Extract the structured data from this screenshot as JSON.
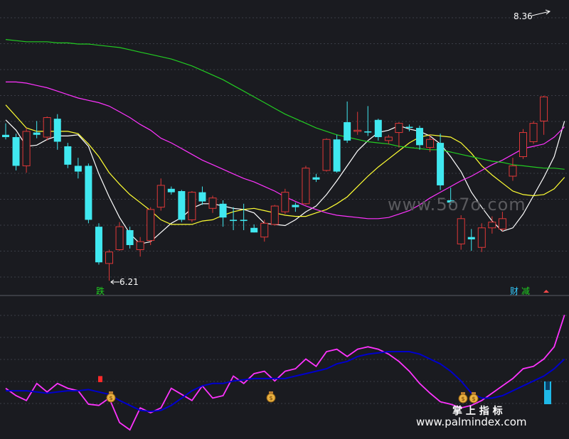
{
  "chart_data": [
    {
      "type": "candlestick",
      "price_high_label": "8.36",
      "price_low_label": "6.21",
      "ylim": [
        6.1,
        8.45
      ],
      "candles": [
        {
          "o": 7.4,
          "h": 7.5,
          "l": 7.36,
          "c": 7.38,
          "up": false
        },
        {
          "o": 7.38,
          "h": 7.41,
          "l": 7.09,
          "c": 7.13,
          "up": false
        },
        {
          "o": 7.43,
          "h": 7.46,
          "l": 7.07,
          "c": 7.13,
          "up": true
        },
        {
          "o": 7.42,
          "h": 7.52,
          "l": 7.37,
          "c": 7.4,
          "up": false
        },
        {
          "o": 7.38,
          "h": 7.56,
          "l": 7.35,
          "c": 7.55,
          "up": true
        },
        {
          "o": 7.54,
          "h": 7.58,
          "l": 7.27,
          "c": 7.34,
          "up": false
        },
        {
          "o": 7.3,
          "h": 7.33,
          "l": 7.11,
          "c": 7.14,
          "up": false
        },
        {
          "o": 7.13,
          "h": 7.2,
          "l": 7.02,
          "c": 7.08,
          "up": false
        },
        {
          "o": 7.13,
          "h": 7.15,
          "l": 6.63,
          "c": 6.66,
          "up": false
        },
        {
          "o": 6.6,
          "h": 6.63,
          "l": 6.27,
          "c": 6.29,
          "up": false
        },
        {
          "o": 6.28,
          "h": 6.4,
          "l": 6.13,
          "c": 6.38,
          "up": true
        },
        {
          "o": 6.4,
          "h": 6.64,
          "l": 6.39,
          "c": 6.6,
          "up": true
        },
        {
          "o": 6.57,
          "h": 6.6,
          "l": 6.41,
          "c": 6.44,
          "up": false
        },
        {
          "o": 6.4,
          "h": 6.51,
          "l": 6.34,
          "c": 6.47,
          "up": true
        },
        {
          "o": 6.48,
          "h": 6.77,
          "l": 6.44,
          "c": 6.75,
          "up": true
        },
        {
          "o": 6.77,
          "h": 7.02,
          "l": 6.74,
          "c": 6.96,
          "up": true
        },
        {
          "o": 6.93,
          "h": 6.95,
          "l": 6.88,
          "c": 6.9,
          "up": false
        },
        {
          "o": 6.91,
          "h": 6.92,
          "l": 6.64,
          "c": 6.66,
          "up": false
        },
        {
          "o": 6.66,
          "h": 6.91,
          "l": 6.64,
          "c": 6.9,
          "up": true
        },
        {
          "o": 6.9,
          "h": 6.95,
          "l": 6.79,
          "c": 6.82,
          "up": false
        },
        {
          "o": 6.76,
          "h": 6.87,
          "l": 6.72,
          "c": 6.85,
          "up": true
        },
        {
          "o": 6.8,
          "h": 6.83,
          "l": 6.6,
          "c": 6.68,
          "up": false
        },
        {
          "o": 6.65,
          "h": 6.77,
          "l": 6.57,
          "c": 6.66,
          "up": false
        },
        {
          "o": 6.65,
          "h": 6.8,
          "l": 6.57,
          "c": 6.66,
          "up": false
        },
        {
          "o": 6.59,
          "h": 6.62,
          "l": 6.55,
          "c": 6.55,
          "up": false
        },
        {
          "o": 6.51,
          "h": 6.66,
          "l": 6.47,
          "c": 6.63,
          "up": true
        },
        {
          "o": 6.62,
          "h": 6.79,
          "l": 6.61,
          "c": 6.78,
          "up": true
        },
        {
          "o": 6.73,
          "h": 6.93,
          "l": 6.71,
          "c": 6.9,
          "up": true
        },
        {
          "o": 6.79,
          "h": 6.81,
          "l": 6.73,
          "c": 6.77,
          "up": false
        },
        {
          "o": 6.8,
          "h": 7.13,
          "l": 6.79,
          "c": 7.11,
          "up": true
        },
        {
          "o": 7.03,
          "h": 7.06,
          "l": 6.99,
          "c": 7.01,
          "up": false
        },
        {
          "o": 7.09,
          "h": 7.37,
          "l": 7.08,
          "c": 7.36,
          "up": true
        },
        {
          "o": 7.08,
          "h": 7.4,
          "l": 7.07,
          "c": 7.36,
          "up": false
        },
        {
          "o": 7.35,
          "h": 7.69,
          "l": 7.33,
          "c": 7.51,
          "up": false
        },
        {
          "o": 7.43,
          "h": 7.6,
          "l": 7.4,
          "c": 7.44,
          "up": true
        },
        {
          "o": 7.43,
          "h": 7.65,
          "l": 7.39,
          "c": 7.42,
          "up": false
        },
        {
          "o": 7.53,
          "h": 7.54,
          "l": 7.35,
          "c": 7.38,
          "up": false
        },
        {
          "o": 7.35,
          "h": 7.4,
          "l": 7.32,
          "c": 7.38,
          "up": true
        },
        {
          "o": 7.42,
          "h": 7.51,
          "l": 7.29,
          "c": 7.5,
          "up": true
        },
        {
          "o": 7.46,
          "h": 7.49,
          "l": 7.43,
          "c": 7.47,
          "up": false
        },
        {
          "o": 7.46,
          "h": 7.48,
          "l": 7.27,
          "c": 7.31,
          "up": false
        },
        {
          "o": 7.36,
          "h": 7.4,
          "l": 7.25,
          "c": 7.29,
          "up": true
        },
        {
          "o": 7.33,
          "h": 7.41,
          "l": 6.92,
          "c": 6.96,
          "up": false
        },
        {
          "o": 6.83,
          "h": 6.94,
          "l": 6.79,
          "c": 6.81,
          "up": false
        },
        {
          "o": 6.67,
          "h": 6.7,
          "l": 6.4,
          "c": 6.45,
          "up": true
        },
        {
          "o": 6.51,
          "h": 6.58,
          "l": 6.39,
          "c": 6.49,
          "up": false
        },
        {
          "o": 6.42,
          "h": 6.63,
          "l": 6.38,
          "c": 6.59,
          "up": true
        },
        {
          "o": 6.59,
          "h": 6.69,
          "l": 6.54,
          "c": 6.64,
          "up": true
        },
        {
          "o": 6.58,
          "h": 6.73,
          "l": 6.56,
          "c": 6.67,
          "up": true
        },
        {
          "o": 7.04,
          "h": 7.2,
          "l": 7.0,
          "c": 7.13,
          "up": true
        },
        {
          "o": 7.21,
          "h": 7.45,
          "l": 7.19,
          "c": 7.42,
          "up": true
        },
        {
          "o": 7.34,
          "h": 7.52,
          "l": 7.32,
          "c": 7.5,
          "up": true
        },
        {
          "o": 7.52,
          "h": 7.74,
          "l": 7.4,
          "c": 7.73,
          "up": true
        }
      ],
      "ma_lines": [
        {
          "color": "#ffffff",
          "values": [
            7.53,
            7.44,
            7.3,
            7.31,
            7.36,
            7.39,
            7.39,
            7.4,
            7.3,
            7.06,
            6.86,
            6.68,
            6.54,
            6.45,
            6.47,
            6.55,
            6.63,
            6.68,
            6.76,
            6.8,
            6.8,
            6.78,
            6.76,
            6.75,
            6.72,
            6.63,
            6.62,
            6.61,
            6.66,
            6.73,
            6.78,
            6.88,
            7.0,
            7.13,
            7.26,
            7.35,
            7.42,
            7.44,
            7.48,
            7.45,
            7.43,
            7.39,
            7.32,
            7.21,
            7.08,
            6.9,
            6.77,
            6.65,
            6.56,
            6.59,
            6.71,
            6.87,
            7.03,
            7.21,
            7.52
          ]
        },
        {
          "color": "#ffff33",
          "values": [
            7.66,
            7.56,
            7.46,
            7.43,
            7.43,
            7.43,
            7.43,
            7.41,
            7.32,
            7.21,
            7.07,
            6.97,
            6.88,
            6.81,
            6.74,
            6.66,
            6.62,
            6.62,
            6.62,
            6.65,
            6.66,
            6.7,
            6.73,
            6.75,
            6.76,
            6.74,
            6.72,
            6.7,
            6.69,
            6.69,
            6.72,
            6.75,
            6.8,
            6.86,
            6.95,
            7.04,
            7.12,
            7.19,
            7.26,
            7.33,
            7.38,
            7.4,
            7.39,
            7.38,
            7.33,
            7.24,
            7.13,
            7.05,
            6.98,
            6.91,
            6.88,
            6.87,
            6.88,
            6.93,
            7.03
          ]
        },
        {
          "color": "#ff33ff",
          "values": [
            7.86,
            7.86,
            7.85,
            7.83,
            7.81,
            7.78,
            7.75,
            7.72,
            7.7,
            7.68,
            7.65,
            7.6,
            7.55,
            7.49,
            7.44,
            7.37,
            7.33,
            7.28,
            7.23,
            7.18,
            7.14,
            7.1,
            7.06,
            7.02,
            6.99,
            6.95,
            6.91,
            6.86,
            6.82,
            6.78,
            6.75,
            6.72,
            6.7,
            6.69,
            6.68,
            6.67,
            6.67,
            6.68,
            6.71,
            6.74,
            6.79,
            6.85,
            6.9,
            6.95,
            7.0,
            7.04,
            7.09,
            7.14,
            7.18,
            7.23,
            7.28,
            7.3,
            7.32,
            7.38,
            7.47
          ]
        },
        {
          "color": "#22cc22",
          "values": [
            8.23,
            8.22,
            8.21,
            8.21,
            8.21,
            8.2,
            8.2,
            8.19,
            8.19,
            8.18,
            8.17,
            8.16,
            8.14,
            8.12,
            8.1,
            8.08,
            8.06,
            8.03,
            8.0,
            7.96,
            7.92,
            7.88,
            7.83,
            7.78,
            7.73,
            7.68,
            7.63,
            7.58,
            7.54,
            7.5,
            7.46,
            7.43,
            7.4,
            7.38,
            7.36,
            7.34,
            7.33,
            7.32,
            7.3,
            7.29,
            7.28,
            7.27,
            7.27,
            7.25,
            7.23,
            7.21,
            7.19,
            7.17,
            7.16,
            7.14,
            7.13,
            7.12,
            7.11,
            7.11,
            7.1
          ]
        }
      ],
      "labels": {
        "left_tag": "跌",
        "right_tag1": "财",
        "right_tag2": "减"
      }
    },
    {
      "type": "line",
      "ylim": [
        0,
        100
      ],
      "series": [
        {
          "color": "#ff33ff",
          "values": [
            38,
            32,
            28,
            42,
            35,
            42,
            38,
            36,
            25,
            24,
            30,
            10,
            4,
            22,
            18,
            22,
            38,
            33,
            28,
            40,
            30,
            32,
            48,
            42,
            50,
            52,
            44,
            52,
            54,
            62,
            56,
            68,
            70,
            64,
            70,
            72,
            70,
            66,
            60,
            52,
            42,
            34,
            27,
            25,
            22,
            24,
            28,
            34,
            40,
            46,
            54,
            56,
            62,
            72,
            98
          ]
        },
        {
          "color": "#0000cc",
          "values": [
            36,
            36,
            36,
            35,
            34,
            35,
            36,
            36,
            37,
            35,
            33,
            28,
            24,
            20,
            19,
            20,
            24,
            30,
            36,
            40,
            42,
            42,
            44,
            45,
            46,
            46,
            46,
            46,
            48,
            50,
            52,
            54,
            58,
            60,
            64,
            66,
            67,
            68,
            68,
            68,
            66,
            62,
            58,
            52,
            44,
            34,
            30,
            30,
            32,
            36,
            40,
            44,
            48,
            54,
            62
          ]
        }
      ],
      "red_signal": {
        "x": 140,
        "value": 48
      },
      "cyan_signal": {
        "x": 770,
        "value": 22
      }
    }
  ],
  "watermark": "www.5o7o.com",
  "footer_cn": "掌 上 指 标",
  "footer_url": "www.palmindex.com"
}
